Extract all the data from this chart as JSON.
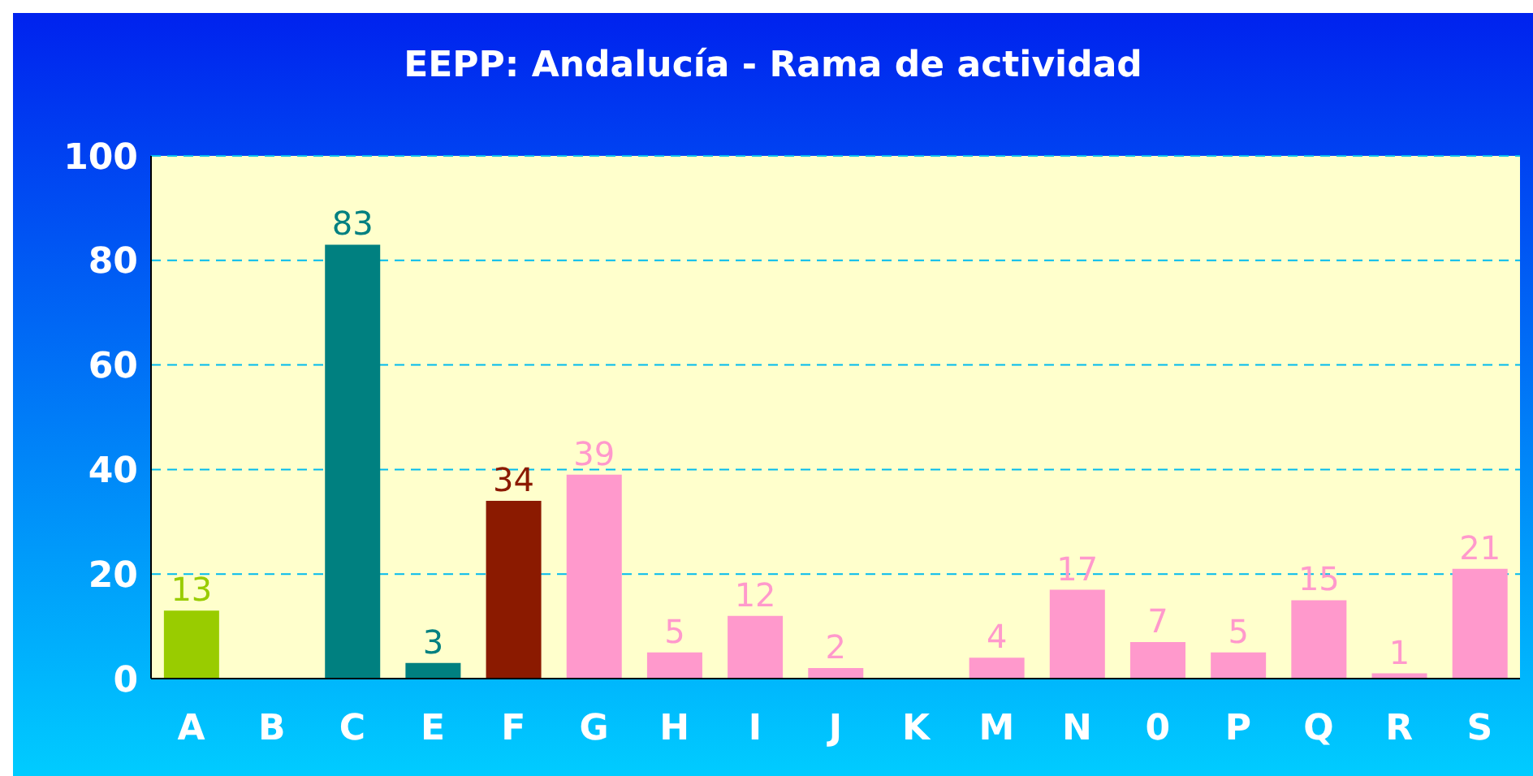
{
  "chart_data": {
    "type": "bar",
    "title": "EEPP: Andalucía - Rama de actividad",
    "categories": [
      "A",
      "B",
      "C",
      "E",
      "F",
      "G",
      "H",
      "I",
      "J",
      "K",
      "M",
      "N",
      "0",
      "P",
      "Q",
      "R",
      "S"
    ],
    "values": [
      13,
      null,
      83,
      3,
      34,
      39,
      5,
      12,
      2,
      null,
      4,
      17,
      7,
      5,
      15,
      1,
      21
    ],
    "colors": [
      "#99cc00",
      "#ff99cc",
      "#008080",
      "#008080",
      "#8b1a00",
      "#ff99cc",
      "#ff99cc",
      "#ff99cc",
      "#ff99cc",
      "#ff99cc",
      "#ff99cc",
      "#ff99cc",
      "#ff99cc",
      "#ff99cc",
      "#ff99cc",
      "#ff99cc",
      "#ff99cc"
    ],
    "ylim": [
      0,
      100
    ],
    "yticks": [
      0,
      20,
      40,
      60,
      80,
      100
    ],
    "grid": "y",
    "data_labels": true
  }
}
